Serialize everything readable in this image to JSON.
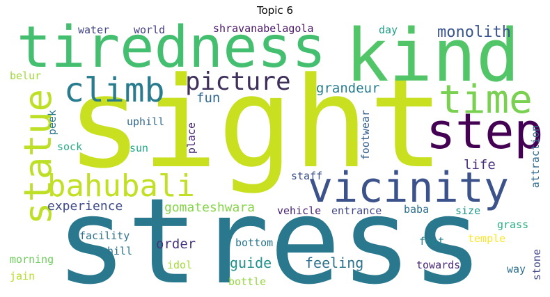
{
  "title": "Topic 6",
  "words": [
    {
      "id": "sight",
      "text": "sight",
      "color": "#c8e020"
    },
    {
      "id": "stress",
      "text": "stress",
      "color": "#2a788e"
    },
    {
      "id": "tiredness",
      "text": "tiredness",
      "color": "#44bf70"
    },
    {
      "id": "kind",
      "text": "kind",
      "color": "#52c569"
    },
    {
      "id": "step",
      "text": "step",
      "color": "#440154"
    },
    {
      "id": "vicinity",
      "text": "vicinity",
      "color": "#3b528b"
    },
    {
      "id": "statue",
      "text": "statue",
      "color": "#bddf26"
    },
    {
      "id": "climb",
      "text": "climb",
      "color": "#287c8e"
    },
    {
      "id": "bahubali",
      "text": "bahubali",
      "color": "#c2df23"
    },
    {
      "id": "time",
      "text": "time",
      "color": "#7ad151"
    },
    {
      "id": "picture",
      "text": "picture",
      "color": "#3e2f5b"
    },
    {
      "id": "monolith",
      "text": "monolith",
      "color": "#3a548c"
    },
    {
      "id": "grandeur",
      "text": "grandeur",
      "color": "#287d8e"
    },
    {
      "id": "fun",
      "text": "fun",
      "color": "#31688e"
    },
    {
      "id": "experience",
      "text": "experience",
      "color": "#3e4a89"
    },
    {
      "id": "gomateshwara",
      "text": "gomateshwara",
      "color": "#86d549"
    },
    {
      "id": "life",
      "text": "life",
      "color": "#472d7b"
    },
    {
      "id": "guide",
      "text": "guide",
      "color": "#21918c"
    },
    {
      "id": "feeling",
      "text": "feeling",
      "color": "#2c728e"
    },
    {
      "id": "order",
      "text": "order",
      "color": "#46337e"
    },
    {
      "id": "water",
      "text": "water",
      "color": "#414487"
    },
    {
      "id": "world",
      "text": "world",
      "color": "#433e85"
    },
    {
      "id": "shravanabelagola",
      "text": "shravanabelagola",
      "color": "#471365"
    },
    {
      "id": "day",
      "text": "day",
      "color": "#1fa188"
    },
    {
      "id": "belur",
      "text": "belur",
      "color": "#a0da39"
    },
    {
      "id": "peek",
      "text": "peek",
      "color": "#2a788e"
    },
    {
      "id": "uphill",
      "text": "uphill",
      "color": "#31688e"
    },
    {
      "id": "sock",
      "text": "sock",
      "color": "#25ac82"
    },
    {
      "id": "sun",
      "text": "sun",
      "color": "#22a884"
    },
    {
      "id": "place",
      "text": "place",
      "color": "#482576"
    },
    {
      "id": "footwear",
      "text": "footwear",
      "color": "#355f8d"
    },
    {
      "id": "staff",
      "text": "staff",
      "color": "#3b528b"
    },
    {
      "id": "attraction",
      "text": "attraction",
      "color": "#306a8e"
    },
    {
      "id": "jain",
      "text": "jain",
      "color": "#b5de2b"
    },
    {
      "id": "vehicle",
      "text": "vehicle",
      "color": "#482374"
    },
    {
      "id": "entrance",
      "text": "entrance",
      "color": "#404688"
    },
    {
      "id": "baba",
      "text": "baba",
      "color": "#2e6e8e"
    },
    {
      "id": "size",
      "text": "size",
      "color": "#1e9b8a"
    },
    {
      "id": "grass",
      "text": "grass",
      "color": "#29af7f"
    },
    {
      "id": "facility",
      "text": "facility",
      "color": "#2c738e"
    },
    {
      "id": "hill",
      "text": "hill",
      "color": "#2c718e"
    },
    {
      "id": "bottom",
      "text": "bottom",
      "color": "#2a788e"
    },
    {
      "id": "foot",
      "text": "foot",
      "color": "#26818e"
    },
    {
      "id": "temple",
      "text": "temple",
      "color": "#fde725"
    },
    {
      "id": "morning",
      "text": "morning",
      "color": "#6ccd5a"
    },
    {
      "id": "idol",
      "text": "idol",
      "color": "#a2da37"
    },
    {
      "id": "way",
      "text": "way",
      "color": "#2d708e"
    },
    {
      "id": "stone",
      "text": "stone",
      "color": "#3f4788"
    },
    {
      "id": "towards",
      "text": "towards",
      "color": "#482878"
    },
    {
      "id": "bottle",
      "text": "bottle",
      "color": "#95d840"
    }
  ]
}
